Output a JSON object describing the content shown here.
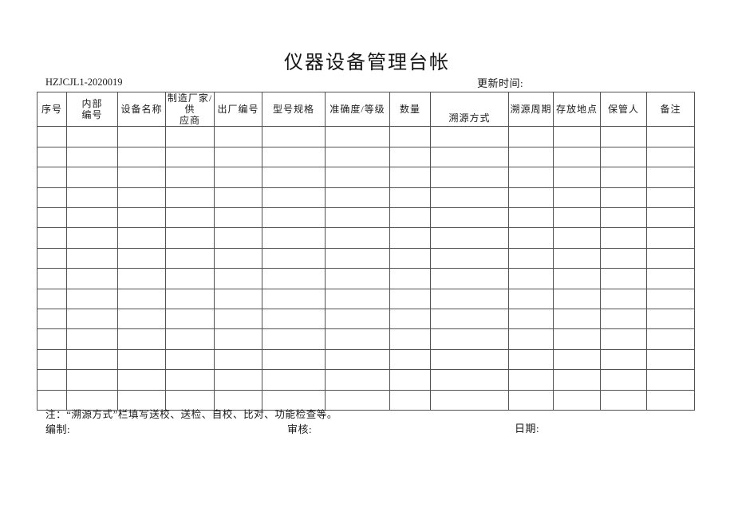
{
  "page": {
    "title": "仪器设备管理台帐",
    "doc_number": "HZJCJL1-2020019",
    "update_time_label": "更新时间:"
  },
  "table": {
    "columns": [
      {
        "key": "xuhao",
        "label": "序号"
      },
      {
        "key": "neibu-bianhao",
        "label": "内部\n编号"
      },
      {
        "key": "shebei-mingcheng",
        "label": "设备名称"
      },
      {
        "key": "zhizao-changjia",
        "label": "制造厂家/供\n应商"
      },
      {
        "key": "chuchang-bianhao",
        "label": "出厂编号"
      },
      {
        "key": "xinghao-guige",
        "label": "型号规格"
      },
      {
        "key": "zhunquedu-dengji",
        "label": "准确度/等级"
      },
      {
        "key": "shuliang",
        "label": "数量"
      },
      {
        "key": "suyuan-fangshi",
        "label": "溯源方式"
      },
      {
        "key": "suyuan-zhouqi",
        "label": "溯源周期"
      },
      {
        "key": "cunfang-didian",
        "label": "存放地点"
      },
      {
        "key": "baoguanren",
        "label": "保管人"
      },
      {
        "key": "beizhu",
        "label": "备注"
      }
    ],
    "row_count": 14
  },
  "footer": {
    "note": "注：“溯源方式”栏填写送校、送检、自校、比对、功能检查等。",
    "prepared_label": "编制:",
    "reviewed_label": "审核:",
    "date_label": "日期:"
  }
}
